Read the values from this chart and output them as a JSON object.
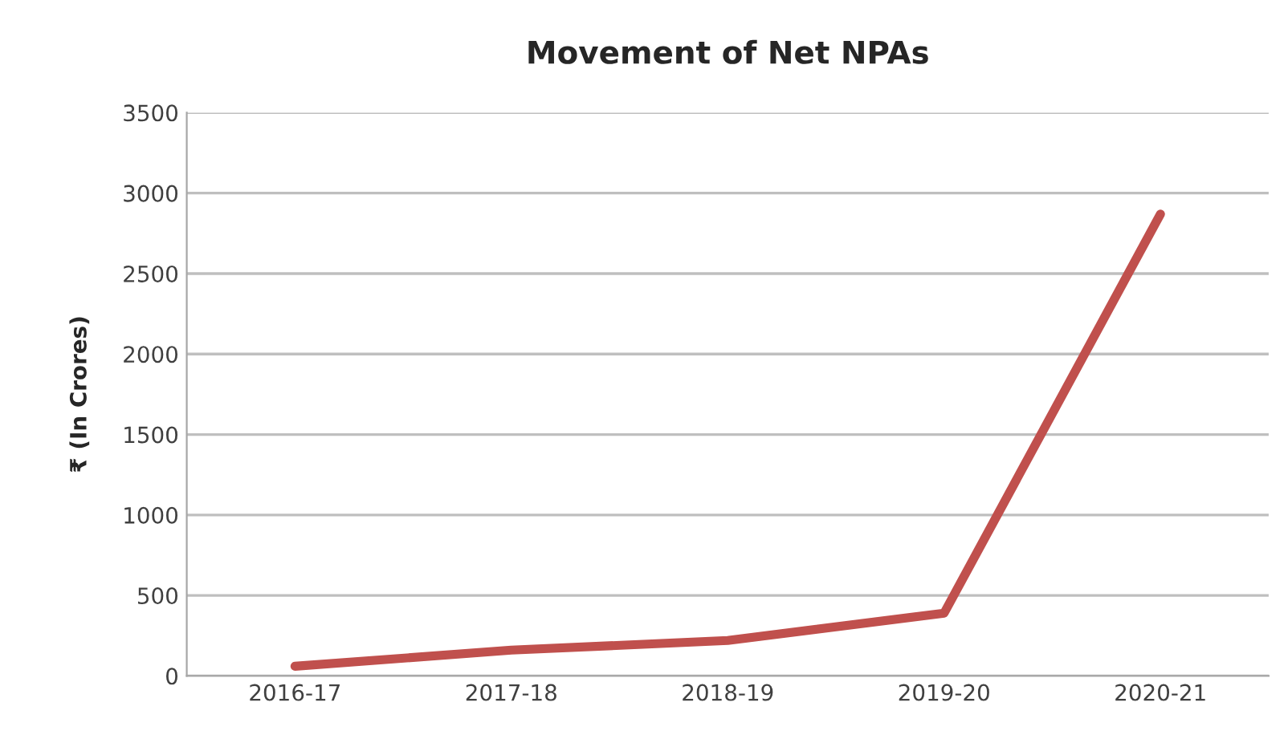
{
  "chart_data": {
    "type": "line",
    "title": "Movement of Net NPAs",
    "ylabel": "₹ (In Crores)",
    "categories": [
      "2016-17",
      "2017-18",
      "2018-19",
      "2019-20",
      "2020-21"
    ],
    "series": [
      {
        "color": "#c0504d",
        "values": [
          60,
          160,
          220,
          390,
          2870
        ]
      }
    ],
    "ylim": [
      0,
      3500
    ],
    "yticks": [
      0,
      500,
      1000,
      1500,
      2000,
      2500,
      3000,
      3500
    ],
    "grid": "y",
    "marker": "none",
    "line_style": "solid"
  }
}
